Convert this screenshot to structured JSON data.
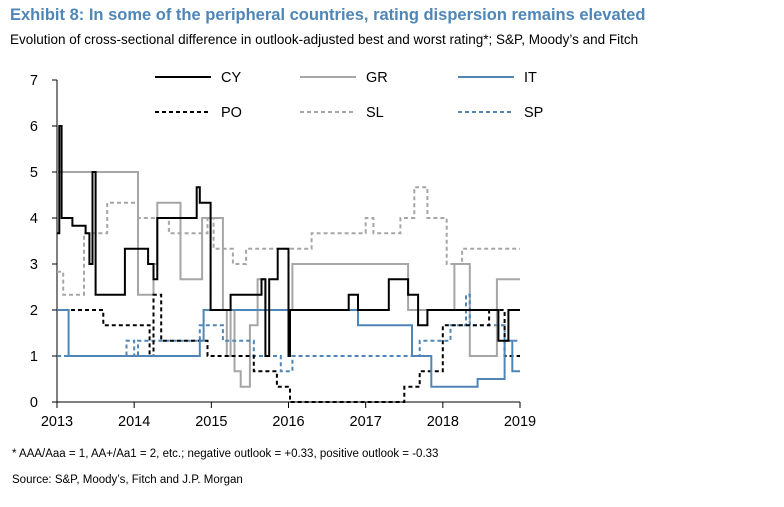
{
  "title": "Exhibit 8: In some of the peripheral countries, rating dispersion remains elevated",
  "subtitle": "Evolution of cross-sectional difference in outlook-adjusted best and worst rating*; S&P, Moody’s and Fitch",
  "footnote": "* AAA/Aaa = 1, AA+/Aa1 = 2, etc.; negative outlook = +0.33, positive outlook = -0.33",
  "source": "Source: S&P, Moody’s, Fitch and J.P. Morgan",
  "chart_data": {
    "type": "line",
    "step": true,
    "title": "",
    "xlabel": "",
    "ylabel": "",
    "xlim": [
      2013,
      2019
    ],
    "ylim": [
      0,
      7
    ],
    "x_ticks": [
      "2013",
      "2014",
      "2015",
      "2016",
      "2017",
      "2018",
      "2019"
    ],
    "y_ticks": [
      "0",
      "1",
      "2",
      "3",
      "4",
      "5",
      "6",
      "7"
    ],
    "legend_position": "top",
    "series": [
      {
        "name": "CY",
        "color": "#000000",
        "dash": "solid",
        "x": [
          2013.0,
          2013.03,
          2013.06,
          2013.09,
          2013.2,
          2013.37,
          2013.42,
          2013.46,
          2013.5,
          2013.85,
          2013.88,
          2014.15,
          2014.18,
          2014.23,
          2014.25,
          2014.3,
          2014.53,
          2014.68,
          2014.75,
          2014.81,
          2014.85,
          2014.99,
          2015.2,
          2015.25,
          2015.35,
          2015.45,
          2015.58,
          2015.65,
          2015.7,
          2015.75,
          2015.86,
          2016.0,
          2016.02,
          2016.3,
          2016.7,
          2016.78,
          2016.9,
          2017.05,
          2017.2,
          2017.25,
          2017.3,
          2017.5,
          2017.55,
          2017.68,
          2017.8,
          2018.0,
          2018.2,
          2018.45,
          2018.55,
          2018.65,
          2018.72,
          2018.85,
          2019.0
        ],
        "y": [
          3.67,
          6.0,
          4.0,
          4.0,
          3.83,
          3.67,
          3.0,
          5.0,
          2.33,
          2.33,
          3.33,
          3.33,
          3.0,
          3.0,
          2.67,
          4.0,
          4.0,
          4.0,
          4.0,
          4.67,
          4.33,
          2.0,
          2.0,
          2.33,
          2.33,
          2.33,
          2.33,
          2.67,
          1.0,
          2.67,
          3.33,
          1.0,
          2.0,
          2.0,
          2.0,
          2.33,
          2.0,
          2.0,
          2.0,
          2.0,
          2.67,
          2.67,
          2.33,
          1.67,
          2.0,
          2.0,
          2.0,
          2.0,
          2.0,
          2.0,
          1.33,
          2.0,
          2.0
        ]
      },
      {
        "name": "GR",
        "color": "#a6a6a6",
        "dash": "solid",
        "x": [
          2013.0,
          2013.92,
          2014.05,
          2014.25,
          2014.3,
          2014.45,
          2014.6,
          2014.88,
          2015.15,
          2015.2,
          2015.25,
          2015.3,
          2015.38,
          2015.5,
          2015.6,
          2015.7,
          2015.85,
          2016.0,
          2016.05,
          2016.55,
          2017.0,
          2017.45,
          2017.55,
          2017.7,
          2018.05,
          2018.15,
          2018.35,
          2018.55,
          2018.7,
          2019.0
        ],
        "y": [
          5.0,
          5.0,
          2.33,
          3.0,
          4.33,
          4.33,
          2.67,
          4.0,
          2.0,
          1.0,
          2.0,
          0.67,
          0.33,
          1.67,
          2.67,
          2.0,
          2.0,
          2.0,
          3.0,
          3.0,
          3.0,
          3.0,
          2.0,
          2.0,
          2.0,
          3.0,
          1.0,
          1.0,
          2.67,
          2.67
        ]
      },
      {
        "name": "IT",
        "color": "#4f86b7",
        "dash": "solid",
        "x": [
          2013.0,
          2013.15,
          2014.28,
          2014.85,
          2014.9,
          2016.8,
          2016.9,
          2017.25,
          2017.6,
          2017.7,
          2017.85,
          2018.05,
          2018.45,
          2018.65,
          2018.8,
          2018.9,
          2019.0
        ],
        "y": [
          2.0,
          1.0,
          1.0,
          1.33,
          2.0,
          2.0,
          1.67,
          1.67,
          1.0,
          1.0,
          0.33,
          0.33,
          0.5,
          0.5,
          1.33,
          0.67,
          0.67
        ]
      },
      {
        "name": "PO",
        "color": "#000000",
        "dash": "dash",
        "x": [
          2013.0,
          2013.35,
          2013.6,
          2014.1,
          2014.2,
          2014.25,
          2014.35,
          2014.85,
          2014.95,
          2015.45,
          2015.55,
          2015.85,
          2016.02,
          2017.42,
          2017.5,
          2017.7,
          2017.85,
          2018.0,
          2018.1,
          2018.6,
          2018.8,
          2019.0
        ],
        "y": [
          2.0,
          2.0,
          1.67,
          1.67,
          1.0,
          2.33,
          1.33,
          1.33,
          1.0,
          1.0,
          0.67,
          0.33,
          0.0,
          0.0,
          0.33,
          0.67,
          0.67,
          1.67,
          1.67,
          2.0,
          1.0,
          1.0
        ]
      },
      {
        "name": "SL",
        "color": "#a6a6a6",
        "dash": "dash",
        "x": [
          2013.0,
          2013.08,
          2013.35,
          2013.65,
          2014.05,
          2014.45,
          2014.8,
          2014.95,
          2015.03,
          2015.28,
          2015.45,
          2015.8,
          2016.3,
          2016.6,
          2017.0,
          2017.1,
          2017.25,
          2017.45,
          2017.63,
          2017.8,
          2018.05,
          2018.15,
          2018.25,
          2018.5,
          2019.0
        ],
        "y": [
          2.83,
          2.33,
          3.67,
          4.33,
          4.0,
          3.67,
          3.67,
          4.0,
          3.33,
          3.0,
          3.33,
          3.33,
          3.67,
          3.67,
          4.0,
          3.67,
          3.67,
          4.0,
          4.67,
          4.0,
          3.0,
          3.0,
          3.33,
          3.33,
          3.33
        ]
      },
      {
        "name": "SP",
        "color": "#4f86b7",
        "dash": "dash",
        "x": [
          2013.0,
          2013.85,
          2013.9,
          2014.0,
          2014.05,
          2014.85,
          2015.15,
          2015.45,
          2015.55,
          2015.9,
          2016.05,
          2016.5,
          2016.85,
          2017.35,
          2017.7,
          2018.1,
          2018.2,
          2018.3,
          2018.35,
          2018.8,
          2019.0
        ],
        "y": [
          1.0,
          1.0,
          1.33,
          1.0,
          1.33,
          1.67,
          1.33,
          1.33,
          1.0,
          0.67,
          1.0,
          1.0,
          1.0,
          1.0,
          1.33,
          1.67,
          1.67,
          2.33,
          1.67,
          1.33,
          1.33
        ]
      }
    ]
  }
}
